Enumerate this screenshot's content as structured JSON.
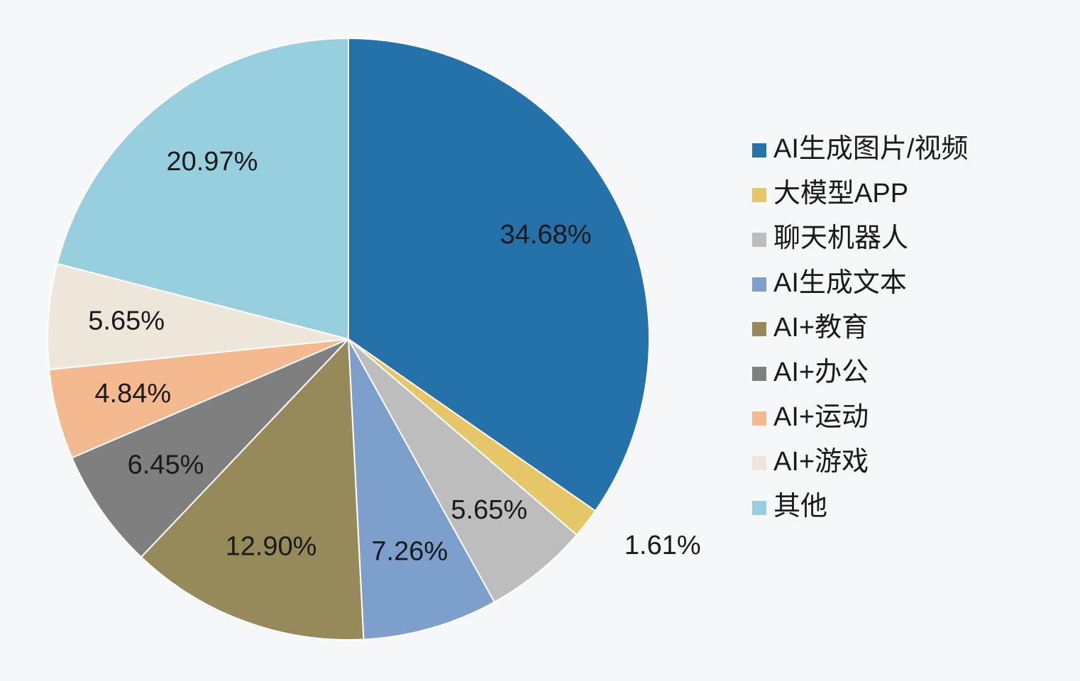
{
  "chart_data": {
    "type": "pie",
    "categories": [
      "AI生成图片/视频",
      "大模型APP",
      "聊天机器人",
      "AI生成文本",
      "AI+教育",
      "AI+办公",
      "AI+运动",
      "AI+游戏",
      "其他"
    ],
    "values": [
      34.68,
      1.61,
      5.65,
      7.26,
      12.9,
      6.45,
      4.84,
      5.65,
      20.97
    ],
    "value_labels": [
      "34.68%",
      "1.61%",
      "5.65%",
      "7.26%",
      "12.90%",
      "6.45%",
      "4.84%",
      "5.65%",
      "20.97%"
    ],
    "colors": [
      "#2571a9",
      "#e6c767",
      "#bdbdbd",
      "#7c9fcc",
      "#968a5a",
      "#7f7f7f",
      "#f4b98f",
      "#ede6da",
      "#98cfdf"
    ],
    "legend": "right"
  }
}
